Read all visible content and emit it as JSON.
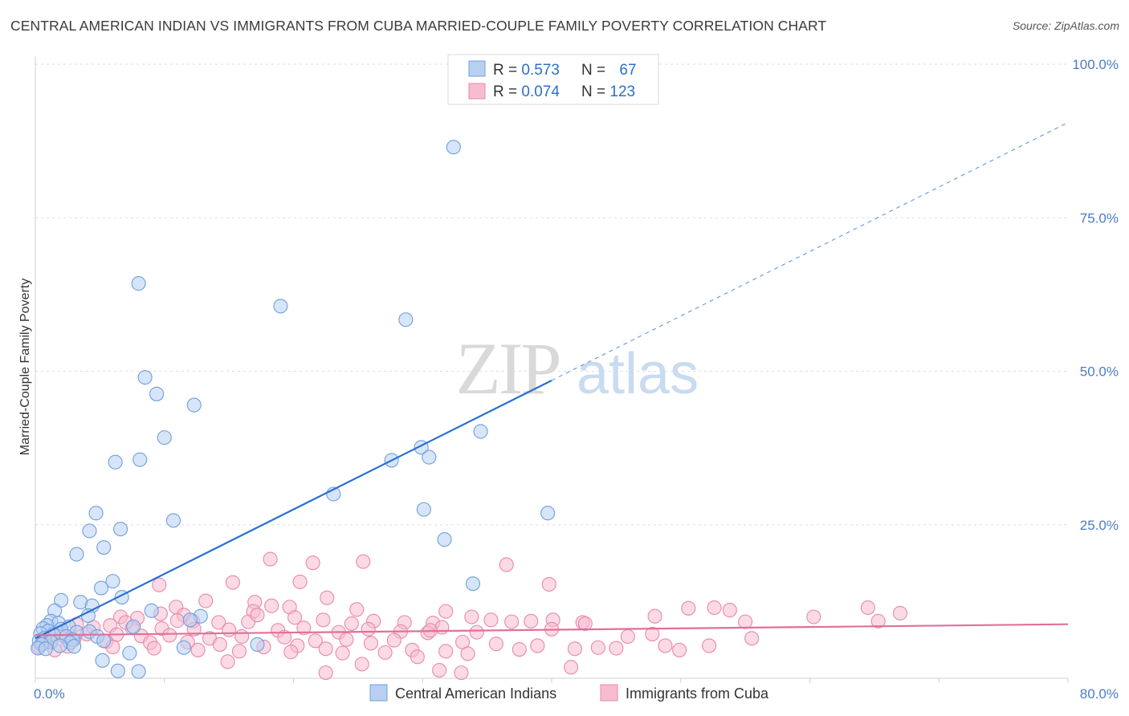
{
  "title": "CENTRAL AMERICAN INDIAN VS IMMIGRANTS FROM CUBA MARRIED-COUPLE FAMILY POVERTY CORRELATION CHART",
  "source": "Source: ZipAtlas.com",
  "watermark": {
    "zip": "ZIP",
    "atlas": "atlas"
  },
  "colors": {
    "blue_fill": "#b7d0f2",
    "blue_stroke": "#6f9fdc",
    "blue_line": "#2a6fd1",
    "pink_fill": "#f7bcd0",
    "pink_stroke": "#e889a8",
    "pink_line": "#e0709a",
    "tick_text": "#4a7cc4",
    "grid": "#dedede"
  },
  "legend": {
    "rows": [
      {
        "r_label": "R = ",
        "r_value": "0.573",
        "n_label": "N = ",
        "n_value": "67",
        "color": "blue"
      },
      {
        "r_label": "R = ",
        "r_value": "0.074",
        "n_label": "N = ",
        "n_value": "123",
        "color": "pink"
      }
    ]
  },
  "bottom_legend": [
    "Central American Indians",
    "Immigrants from Cuba"
  ],
  "chart_data": {
    "type": "scatter",
    "xlabel": "",
    "ylabel": "Married-Couple Family Poverty",
    "xlim": [
      0,
      80
    ],
    "ylim": [
      0,
      100
    ],
    "x_tick_labels": [
      {
        "v": 0,
        "label": "0.0%"
      },
      {
        "v": 80,
        "label": "80.0%"
      }
    ],
    "y_tick_labels": [
      {
        "v": 25,
        "label": "25.0%"
      },
      {
        "v": 50,
        "label": "50.0%"
      },
      {
        "v": 75,
        "label": "75.0%"
      },
      {
        "v": 100,
        "label": "100.0%"
      }
    ],
    "legend_position": "top-center",
    "series": [
      {
        "name": "Central American Indians",
        "color": "blue",
        "trend": {
          "x0": 0,
          "y0": 6.5,
          "x_solid_end": 40,
          "x1": 80,
          "y1": 90.5
        },
        "points": [
          [
            32.4,
            86.5
          ],
          [
            8.0,
            64.3
          ],
          [
            19.0,
            60.6
          ],
          [
            28.7,
            58.4
          ],
          [
            8.5,
            49.0
          ],
          [
            9.4,
            46.3
          ],
          [
            12.3,
            44.5
          ],
          [
            10.0,
            39.2
          ],
          [
            29.9,
            37.6
          ],
          [
            34.5,
            40.2
          ],
          [
            8.1,
            35.6
          ],
          [
            6.2,
            35.2
          ],
          [
            27.6,
            35.5
          ],
          [
            30.5,
            36.0
          ],
          [
            23.1,
            30.0
          ],
          [
            39.7,
            26.9
          ],
          [
            30.1,
            27.5
          ],
          [
            4.7,
            26.9
          ],
          [
            10.7,
            25.7
          ],
          [
            6.6,
            24.3
          ],
          [
            4.2,
            24.0
          ],
          [
            5.3,
            21.3
          ],
          [
            31.7,
            22.6
          ],
          [
            3.2,
            20.2
          ],
          [
            6.0,
            15.8
          ],
          [
            33.9,
            15.4
          ],
          [
            5.1,
            14.7
          ],
          [
            6.7,
            13.2
          ],
          [
            2.0,
            12.7
          ],
          [
            3.5,
            12.4
          ],
          [
            4.4,
            11.8
          ],
          [
            1.5,
            11.0
          ],
          [
            9.0,
            11.0
          ],
          [
            4.1,
            10.2
          ],
          [
            12.8,
            10.1
          ],
          [
            1.2,
            9.3
          ],
          [
            1.8,
            9.0
          ],
          [
            0.9,
            8.6
          ],
          [
            2.6,
            8.4
          ],
          [
            7.6,
            8.4
          ],
          [
            0.6,
            8.1
          ],
          [
            2.0,
            8.0
          ],
          [
            1.0,
            7.7
          ],
          [
            3.2,
            7.5
          ],
          [
            4.2,
            7.6
          ],
          [
            0.4,
            7.3
          ],
          [
            1.4,
            7.1
          ],
          [
            2.4,
            6.8
          ],
          [
            4.8,
            6.8
          ],
          [
            0.7,
            6.5
          ],
          [
            2.9,
            6.3
          ],
          [
            0.3,
            6.1
          ],
          [
            5.3,
            6.1
          ],
          [
            1.2,
            5.9
          ],
          [
            2.7,
            5.8
          ],
          [
            0.5,
            5.5
          ],
          [
            3.0,
            5.2
          ],
          [
            1.9,
            5.3
          ],
          [
            0.2,
            4.9
          ],
          [
            0.8,
            4.8
          ],
          [
            17.2,
            5.5
          ],
          [
            11.5,
            5.0
          ],
          [
            7.3,
            4.1
          ],
          [
            5.2,
            2.9
          ],
          [
            6.4,
            1.2
          ],
          [
            8.0,
            1.1
          ],
          [
            12.0,
            9.5
          ]
        ]
      },
      {
        "name": "Immigrants from Cuba",
        "color": "pink",
        "trend": {
          "x0": 0,
          "y0": 7.0,
          "x1": 80,
          "y1": 8.8
        },
        "points": [
          [
            18.2,
            19.4
          ],
          [
            21.5,
            18.8
          ],
          [
            25.4,
            19.0
          ],
          [
            36.5,
            18.5
          ],
          [
            9.6,
            15.2
          ],
          [
            15.3,
            15.6
          ],
          [
            20.5,
            15.7
          ],
          [
            39.8,
            15.3
          ],
          [
            22.6,
            13.1
          ],
          [
            13.2,
            12.6
          ],
          [
            17.0,
            12.4
          ],
          [
            10.9,
            11.6
          ],
          [
            18.3,
            11.8
          ],
          [
            16.9,
            10.9
          ],
          [
            19.7,
            11.6
          ],
          [
            24.9,
            11.2
          ],
          [
            31.8,
            10.9
          ],
          [
            50.6,
            11.4
          ],
          [
            52.6,
            11.5
          ],
          [
            53.8,
            11.1
          ],
          [
            64.5,
            11.5
          ],
          [
            67.0,
            10.6
          ],
          [
            9.7,
            10.5
          ],
          [
            11.5,
            10.3
          ],
          [
            6.6,
            10.0
          ],
          [
            7.9,
            9.8
          ],
          [
            11.0,
            9.4
          ],
          [
            12.2,
            9.3
          ],
          [
            14.2,
            9.1
          ],
          [
            16.5,
            9.2
          ],
          [
            17.2,
            10.3
          ],
          [
            20.1,
            9.9
          ],
          [
            22.3,
            9.5
          ],
          [
            24.5,
            8.9
          ],
          [
            26.2,
            9.3
          ],
          [
            28.6,
            9.1
          ],
          [
            30.8,
            9.0
          ],
          [
            33.8,
            10.0
          ],
          [
            35.3,
            9.5
          ],
          [
            36.9,
            9.2
          ],
          [
            38.4,
            9.3
          ],
          [
            40.1,
            9.5
          ],
          [
            42.4,
            9.1
          ],
          [
            48.0,
            10.1
          ],
          [
            55.0,
            9.2
          ],
          [
            60.3,
            10.0
          ],
          [
            65.3,
            9.3
          ],
          [
            3.2,
            8.8
          ],
          [
            5.8,
            8.6
          ],
          [
            7.5,
            8.2
          ],
          [
            9.8,
            8.1
          ],
          [
            12.3,
            8.0
          ],
          [
            15.0,
            7.9
          ],
          [
            18.8,
            7.8
          ],
          [
            20.8,
            8.2
          ],
          [
            23.5,
            7.5
          ],
          [
            25.8,
            8.0
          ],
          [
            28.3,
            7.6
          ],
          [
            30.4,
            7.4
          ],
          [
            31.5,
            8.3
          ],
          [
            34.2,
            7.5
          ],
          [
            40.0,
            8.0
          ],
          [
            42.6,
            8.9
          ],
          [
            45.9,
            6.8
          ],
          [
            47.8,
            7.2
          ],
          [
            2.0,
            7.5
          ],
          [
            4.0,
            7.2
          ],
          [
            6.3,
            7.1
          ],
          [
            8.2,
            6.9
          ],
          [
            10.4,
            7.0
          ],
          [
            13.5,
            6.5
          ],
          [
            16.0,
            6.8
          ],
          [
            19.3,
            6.7
          ],
          [
            21.7,
            6.1
          ],
          [
            24.1,
            6.3
          ],
          [
            27.8,
            6.2
          ],
          [
            30.6,
            7.8
          ],
          [
            33.1,
            5.9
          ],
          [
            35.7,
            5.6
          ],
          [
            38.9,
            5.3
          ],
          [
            43.6,
            5.0
          ],
          [
            48.8,
            5.3
          ],
          [
            52.2,
            5.3
          ],
          [
            55.5,
            6.5
          ],
          [
            1.0,
            6.5
          ],
          [
            3.0,
            6.3
          ],
          [
            5.5,
            6.0
          ],
          [
            8.9,
            5.8
          ],
          [
            11.8,
            5.9
          ],
          [
            14.3,
            5.5
          ],
          [
            17.7,
            5.1
          ],
          [
            20.3,
            5.3
          ],
          [
            22.5,
            4.8
          ],
          [
            26.0,
            5.7
          ],
          [
            29.2,
            4.6
          ],
          [
            31.8,
            4.4
          ],
          [
            37.5,
            4.7
          ],
          [
            41.8,
            4.8
          ],
          [
            45.0,
            4.9
          ],
          [
            49.9,
            4.6
          ],
          [
            0.5,
            5.7
          ],
          [
            2.5,
            5.2
          ],
          [
            6.0,
            5.1
          ],
          [
            9.2,
            4.9
          ],
          [
            12.6,
            4.6
          ],
          [
            15.8,
            4.4
          ],
          [
            19.8,
            4.3
          ],
          [
            23.8,
            4.1
          ],
          [
            27.1,
            4.2
          ],
          [
            29.6,
            3.5
          ],
          [
            33.5,
            4.0
          ],
          [
            14.9,
            2.7
          ],
          [
            25.3,
            2.3
          ],
          [
            31.3,
            1.3
          ],
          [
            22.5,
            0.9
          ],
          [
            33.0,
            0.9
          ],
          [
            41.5,
            1.8
          ],
          [
            0.3,
            5.1
          ],
          [
            1.5,
            4.6
          ],
          [
            0.8,
            5.9
          ],
          [
            2.2,
            6.9
          ],
          [
            4.5,
            8.3
          ],
          [
            7.0,
            9.1
          ]
        ]
      }
    ]
  }
}
